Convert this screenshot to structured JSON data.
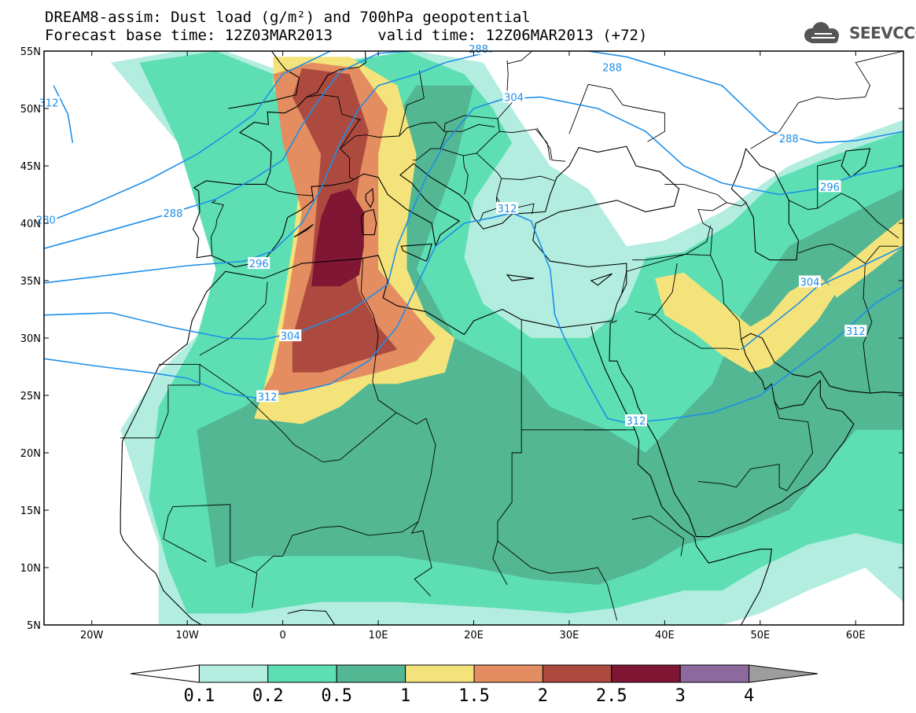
{
  "title": {
    "line1": "DREAM8-assim: Dust load (g/m²) and 700hPa geopotential",
    "line2": "Forecast base time: 12Z03MAR2013     valid time: 12Z06MAR2013 (+72)"
  },
  "logo": {
    "text": "SEEVCCC",
    "icon": "cloud-logo-icon"
  },
  "map": {
    "lon_range": [
      -25,
      65
    ],
    "lat_range": [
      5,
      55
    ],
    "lat_ticks": [
      {
        "v": 55,
        "label": "55N"
      },
      {
        "v": 50,
        "label": "50N"
      },
      {
        "v": 45,
        "label": "45N"
      },
      {
        "v": 40,
        "label": "40N"
      },
      {
        "v": 35,
        "label": "35N"
      },
      {
        "v": 30,
        "label": "30N"
      },
      {
        "v": 25,
        "label": "25N"
      },
      {
        "v": 20,
        "label": "20N"
      },
      {
        "v": 15,
        "label": "15N"
      },
      {
        "v": 10,
        "label": "10N"
      },
      {
        "v": 5,
        "label": "5N"
      }
    ],
    "lon_ticks": [
      {
        "v": -20,
        "label": "20W"
      },
      {
        "v": -10,
        "label": "10W"
      },
      {
        "v": 0,
        "label": "0"
      },
      {
        "v": 10,
        "label": "10E"
      },
      {
        "v": 20,
        "label": "20E"
      },
      {
        "v": 30,
        "label": "30E"
      },
      {
        "v": 40,
        "label": "40E"
      },
      {
        "v": 50,
        "label": "50E"
      },
      {
        "v": 60,
        "label": "60E"
      }
    ],
    "geopotential_labels": [
      {
        "text": "312",
        "lon": -24.5,
        "lat": 50.5
      },
      {
        "text": "280",
        "lon": -24.8,
        "lat": 40.3
      },
      {
        "text": "288",
        "lon": -11.5,
        "lat": 40.9
      },
      {
        "text": "296",
        "lon": -2.5,
        "lat": 36.5
      },
      {
        "text": "304",
        "lon": 0.8,
        "lat": 30.2
      },
      {
        "text": "312",
        "lon": -1.6,
        "lat": 24.9
      },
      {
        "text": "288",
        "lon": 20.5,
        "lat": 55.2
      },
      {
        "text": "288",
        "lon": 34.5,
        "lat": 53.6
      },
      {
        "text": "304",
        "lon": 24.2,
        "lat": 51.0
      },
      {
        "text": "312",
        "lon": 23.5,
        "lat": 41.3
      },
      {
        "text": "288",
        "lon": 53.0,
        "lat": 47.4
      },
      {
        "text": "296",
        "lon": 57.3,
        "lat": 43.2
      },
      {
        "text": "304",
        "lon": 55.2,
        "lat": 34.9
      },
      {
        "text": "312",
        "lon": 60.0,
        "lat": 30.6
      },
      {
        "text": "312",
        "lon": 37.0,
        "lat": 22.8
      }
    ]
  },
  "colorbar": {
    "colors": [
      "#ffffff",
      "#b2ede0",
      "#5ddfb3",
      "#52b792",
      "#f3e37a",
      "#e38d61",
      "#ad4a3f",
      "#7f1634",
      "#8c6a9e",
      "#9d9d9d"
    ],
    "labels": [
      "0.1",
      "0.2",
      "0.5",
      "1",
      "1.5",
      "2",
      "2.5",
      "3",
      "4"
    ]
  },
  "dust_colors": {
    "c01": "#b2ede0",
    "c02": "#5ddfb3",
    "c05": "#52b792",
    "c1": "#f3e37a",
    "c15": "#e38d61",
    "c2": "#ad4a3f",
    "c25": "#7f1634"
  },
  "contour_color": "#1f8fe8"
}
